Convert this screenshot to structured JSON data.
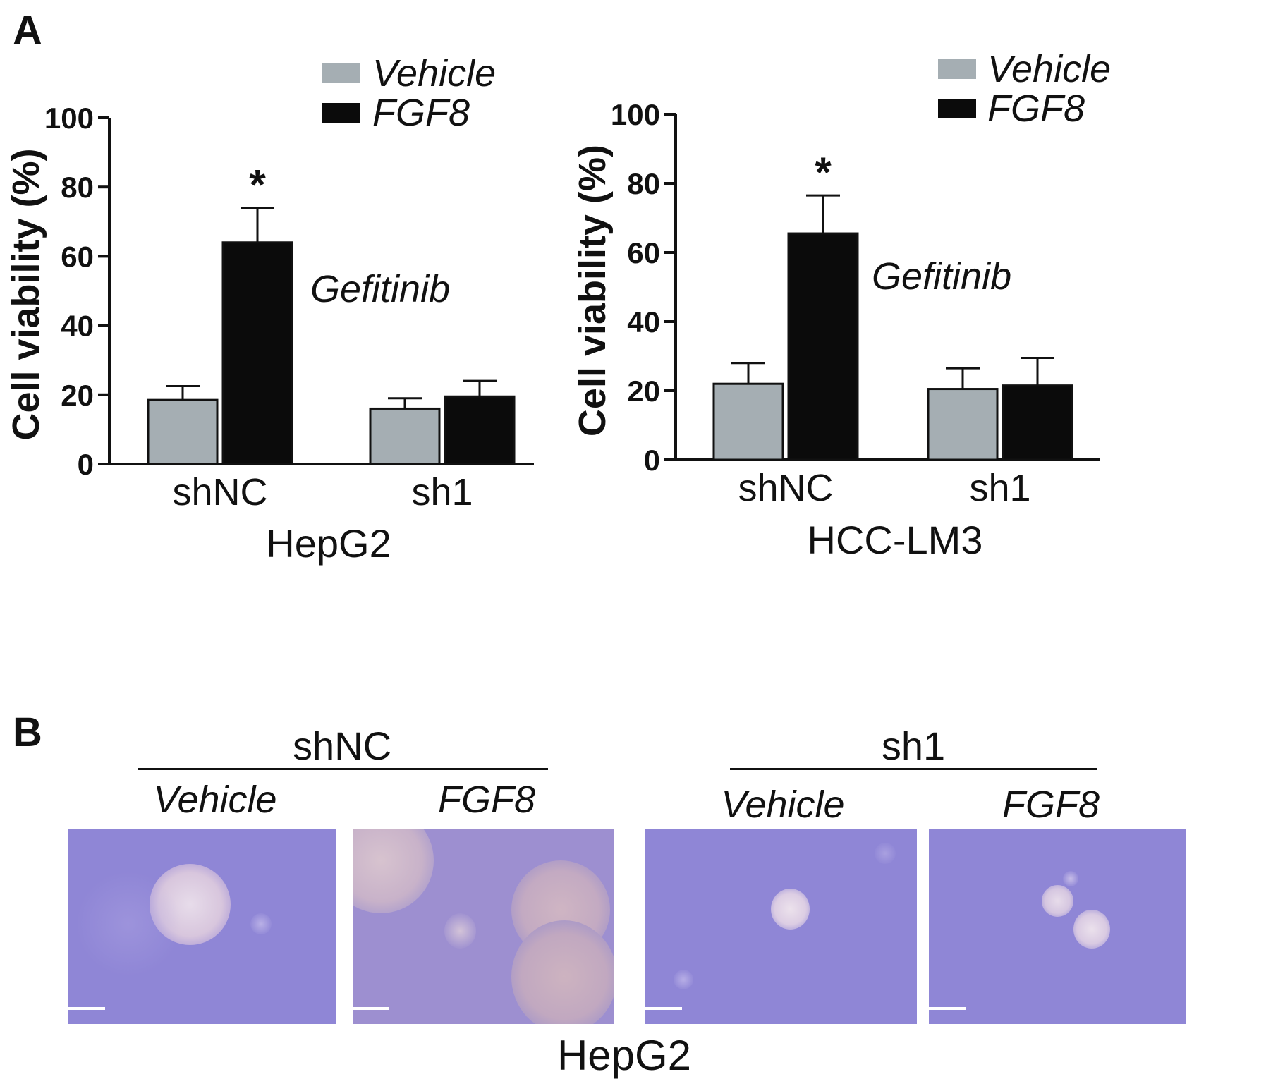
{
  "panel_labels": {
    "a": "A",
    "b": "B"
  },
  "chart_data": [
    {
      "type": "bar",
      "xlabel": "HepG2",
      "ylabel": "Cell viability (%)",
      "ylim": [
        0,
        100
      ],
      "yticks": [
        "0",
        "20",
        "40",
        "60",
        "80",
        "100"
      ],
      "categories": [
        "shNC",
        "sh1"
      ],
      "series": [
        {
          "name": "Vehicle",
          "color": "#a5aeb3",
          "values": [
            18.5,
            16
          ],
          "errors": [
            4,
            3
          ]
        },
        {
          "name": "FGF8",
          "color": "#0b0b0b",
          "values": [
            64,
            19.5
          ],
          "errors": [
            10,
            4.5
          ]
        }
      ],
      "annotations": {
        "significance": "*",
        "treatment": "Gefitinib"
      },
      "legend_position": "top-right"
    },
    {
      "type": "bar",
      "xlabel": "HCC-LM3",
      "ylabel": "Cell viability (%)",
      "ylim": [
        0,
        100
      ],
      "yticks": [
        "0",
        "20",
        "40",
        "60",
        "80",
        "100"
      ],
      "categories": [
        "shNC",
        "sh1"
      ],
      "series": [
        {
          "name": "Vehicle",
          "color": "#a5aeb3",
          "values": [
            22,
            20.5
          ],
          "errors": [
            6,
            6
          ]
        },
        {
          "name": "FGF8",
          "color": "#0b0b0b",
          "values": [
            65.5,
            21.5
          ],
          "errors": [
            11,
            8
          ]
        }
      ],
      "annotations": {
        "significance": "*",
        "treatment": "Gefitinib"
      },
      "legend_position": "top-right"
    }
  ],
  "panel_b": {
    "groups": [
      "shNC",
      "sh1"
    ],
    "conditions": [
      "Vehicle",
      "FGF8",
      "Vehicle",
      "FGF8"
    ],
    "caption": "HepG2"
  }
}
